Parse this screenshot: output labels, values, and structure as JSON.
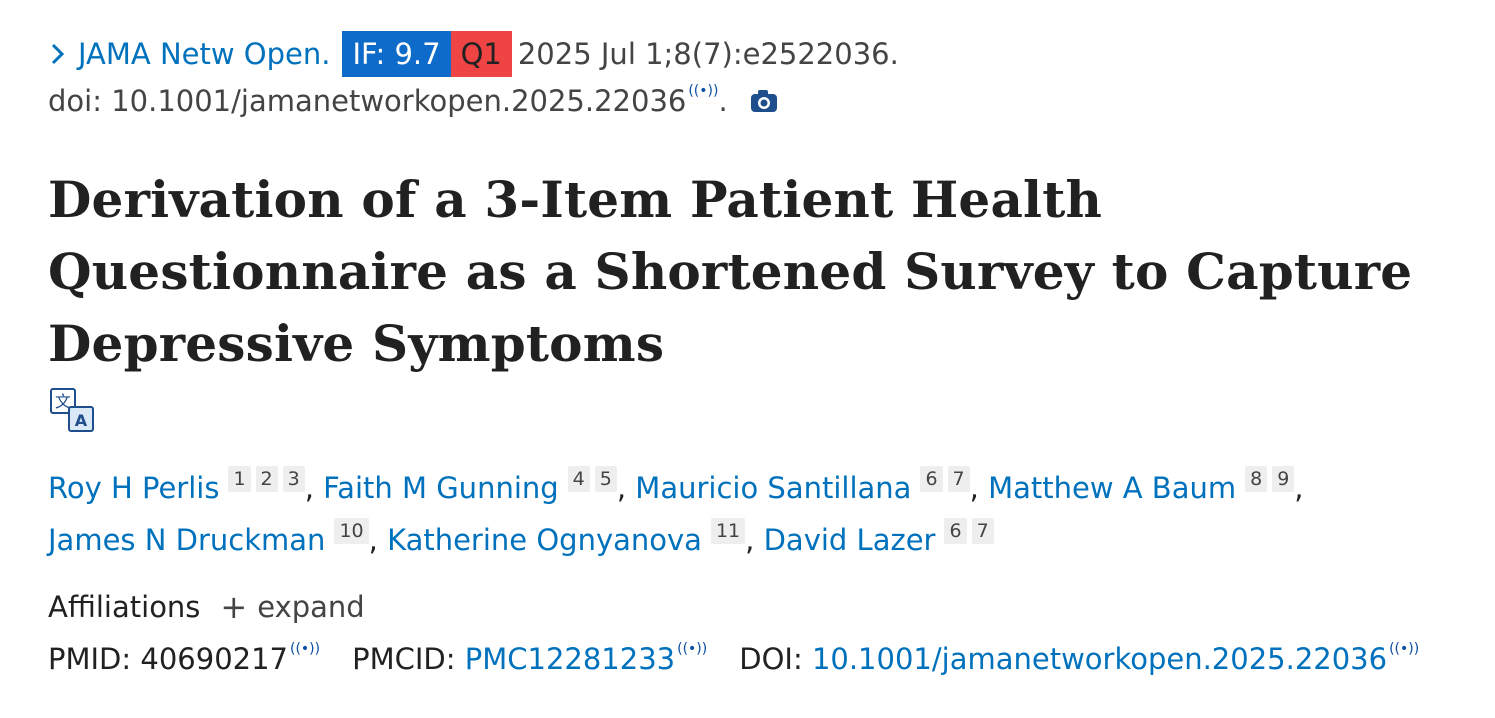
{
  "citation": {
    "journal": "JAMA Netw Open.",
    "impact_factor": "IF: 9.7",
    "quartile": "Q1",
    "date_volume": "2025 Jul 1;8(7):e2522036.",
    "doi_text": "doi: 10.1001/jamanetworkopen.2025.22036",
    "doi_suffix": "."
  },
  "title": "Derivation of a 3-Item Patient Health Questionnaire as a Shortened Survey to Capture Depressive Symptoms",
  "authors": [
    {
      "name": "Roy H Perlis",
      "affs": [
        "1",
        "2",
        "3"
      ],
      "sep": ","
    },
    {
      "name": "Faith M Gunning",
      "affs": [
        "4",
        "5"
      ],
      "sep": ","
    },
    {
      "name": "Mauricio Santillana",
      "affs": [
        "6",
        "7"
      ],
      "sep": ","
    },
    {
      "name": "Matthew A Baum",
      "affs": [
        "8",
        "9"
      ],
      "sep": ","
    },
    {
      "name": "James N Druckman",
      "affs": [
        "10"
      ],
      "sep": ","
    },
    {
      "name": "Katherine Ognyanova",
      "affs": [
        "11"
      ],
      "sep": ","
    },
    {
      "name": "David Lazer",
      "affs": [
        "6",
        "7"
      ],
      "sep": ""
    }
  ],
  "affiliations": {
    "label": "Affiliations",
    "expand_label": "expand"
  },
  "identifiers": {
    "pmid_label": "PMID:",
    "pmid_value": "40690217",
    "pmcid_label": "PMCID:",
    "pmcid_value": "PMC12281233",
    "doi_label": "DOI:",
    "doi_value": "10.1001/jamanetworkopen.2025.22036"
  },
  "colors": {
    "link": "#0071bc",
    "if_badge": "#0f6bc9",
    "q_badge": "#ef4444"
  },
  "icons": [
    "chevron-right-icon",
    "radio-signal-icon",
    "camera-icon",
    "translate-icon",
    "plus-icon"
  ]
}
